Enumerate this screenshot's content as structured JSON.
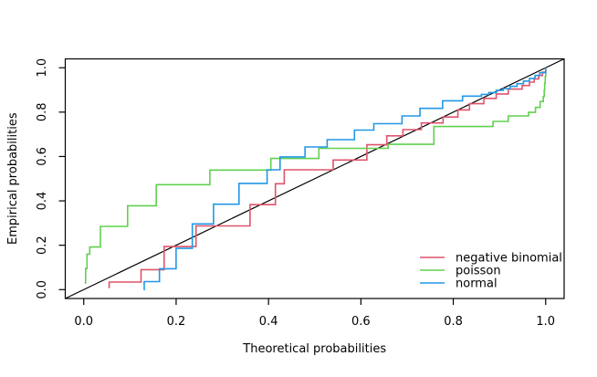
{
  "chart_data": {
    "type": "line",
    "subtype": "pp-plot-steps",
    "title": "",
    "xlabel": "Theoretical probabilities",
    "ylabel": "Empirical probabilities",
    "xlim": [
      0,
      1
    ],
    "ylim": [
      0,
      1
    ],
    "x_tick_labels": [
      "0.0",
      "0.2",
      "0.4",
      "0.6",
      "0.8",
      "1.0"
    ],
    "y_tick_labels": [
      "0.0",
      "0.2",
      "0.4",
      "0.6",
      "0.8",
      "1.0"
    ],
    "grid": false,
    "legend": {
      "position": "bottomright"
    },
    "reference_line": {
      "name": "identity",
      "from": [
        0,
        0
      ],
      "to": [
        1,
        1
      ],
      "color": "#000000"
    },
    "series": [
      {
        "name": "negative binomial",
        "color": "#DF536B",
        "line_type": "step",
        "points": [
          [
            0.053,
            0.01
          ],
          [
            0.055,
            0.034
          ],
          [
            0.124,
            0.09
          ],
          [
            0.174,
            0.194
          ],
          [
            0.243,
            0.287
          ],
          [
            0.36,
            0.383
          ],
          [
            0.415,
            0.477
          ],
          [
            0.434,
            0.54
          ],
          [
            0.54,
            0.584
          ],
          [
            0.613,
            0.653
          ],
          [
            0.656,
            0.693
          ],
          [
            0.691,
            0.721
          ],
          [
            0.731,
            0.751
          ],
          [
            0.778,
            0.778
          ],
          [
            0.81,
            0.81
          ],
          [
            0.835,
            0.838
          ],
          [
            0.866,
            0.862
          ],
          [
            0.893,
            0.882
          ],
          [
            0.919,
            0.904
          ],
          [
            0.949,
            0.92
          ],
          [
            0.965,
            0.935
          ],
          [
            0.975,
            0.95
          ],
          [
            0.985,
            0.965
          ],
          [
            0.993,
            0.98
          ],
          [
            1.0,
            1.0
          ]
        ]
      },
      {
        "name": "poisson",
        "color": "#61D04F",
        "line_type": "step",
        "points": [
          [
            0.002,
            0.03
          ],
          [
            0.004,
            0.095
          ],
          [
            0.007,
            0.16
          ],
          [
            0.013,
            0.192
          ],
          [
            0.036,
            0.285
          ],
          [
            0.095,
            0.378
          ],
          [
            0.157,
            0.473
          ],
          [
            0.273,
            0.539
          ],
          [
            0.405,
            0.591
          ],
          [
            0.509,
            0.637
          ],
          [
            0.659,
            0.655
          ],
          [
            0.758,
            0.735
          ],
          [
            0.886,
            0.758
          ],
          [
            0.919,
            0.783
          ],
          [
            0.963,
            0.799
          ],
          [
            0.978,
            0.821
          ],
          [
            0.988,
            0.848
          ],
          [
            0.995,
            0.87
          ],
          [
            0.997,
            0.9
          ],
          [
            0.998,
            0.93
          ],
          [
            0.999,
            0.96
          ],
          [
            1.0,
            1.0
          ]
        ]
      },
      {
        "name": "normal",
        "color": "#2297E6",
        "line_type": "step",
        "points": [
          [
            0.13,
            0.0
          ],
          [
            0.131,
            0.036
          ],
          [
            0.164,
            0.094
          ],
          [
            0.2,
            0.186
          ],
          [
            0.235,
            0.296
          ],
          [
            0.281,
            0.385
          ],
          [
            0.336,
            0.479
          ],
          [
            0.397,
            0.54
          ],
          [
            0.425,
            0.598
          ],
          [
            0.479,
            0.643
          ],
          [
            0.527,
            0.676
          ],
          [
            0.586,
            0.719
          ],
          [
            0.628,
            0.748
          ],
          [
            0.689,
            0.783
          ],
          [
            0.728,
            0.817
          ],
          [
            0.777,
            0.851
          ],
          [
            0.82,
            0.872
          ],
          [
            0.861,
            0.88
          ],
          [
            0.877,
            0.888
          ],
          [
            0.893,
            0.898
          ],
          [
            0.908,
            0.906
          ],
          [
            0.923,
            0.916
          ],
          [
            0.938,
            0.928
          ],
          [
            0.952,
            0.94
          ],
          [
            0.965,
            0.952
          ],
          [
            0.977,
            0.965
          ],
          [
            0.987,
            0.978
          ],
          [
            1.0,
            1.0
          ]
        ]
      }
    ]
  }
}
